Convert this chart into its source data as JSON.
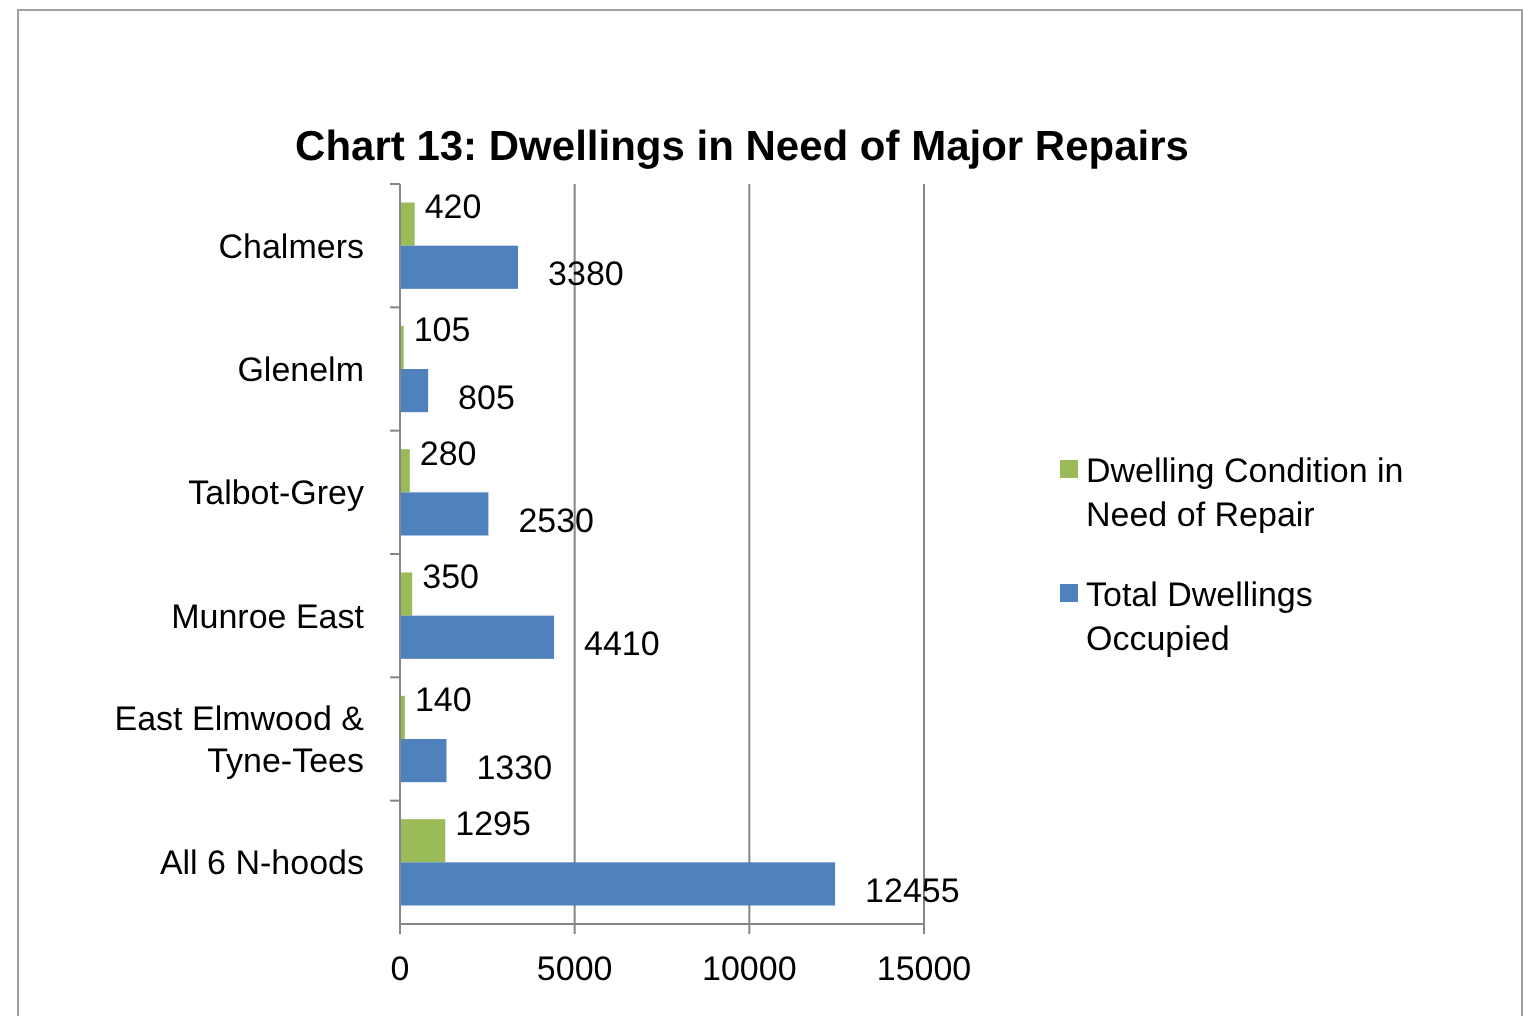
{
  "chart_data": {
    "type": "bar",
    "orientation": "horizontal",
    "title": "Chart 13: Dwellings in Need of Major Repairs",
    "categories": [
      "Chalmers",
      "Glenelm",
      "Talbot-Grey",
      "Munroe East",
      "East Elmwood & Tyne-Tees",
      "All 6 N-hoods"
    ],
    "series": [
      {
        "name": "Dwelling Condition in Need of Repair",
        "color": "#9bbb59",
        "values": [
          420,
          105,
          280,
          350,
          140,
          1295
        ]
      },
      {
        "name": "Total Dwellings Occupied",
        "color": "#4f81bd",
        "values": [
          3380,
          805,
          2530,
          4410,
          1330,
          12455
        ]
      }
    ],
    "xlim": [
      0,
      15000
    ],
    "xticks": [
      0,
      5000,
      10000,
      15000
    ],
    "grid": "x",
    "legend": "right",
    "data_labels": true
  }
}
